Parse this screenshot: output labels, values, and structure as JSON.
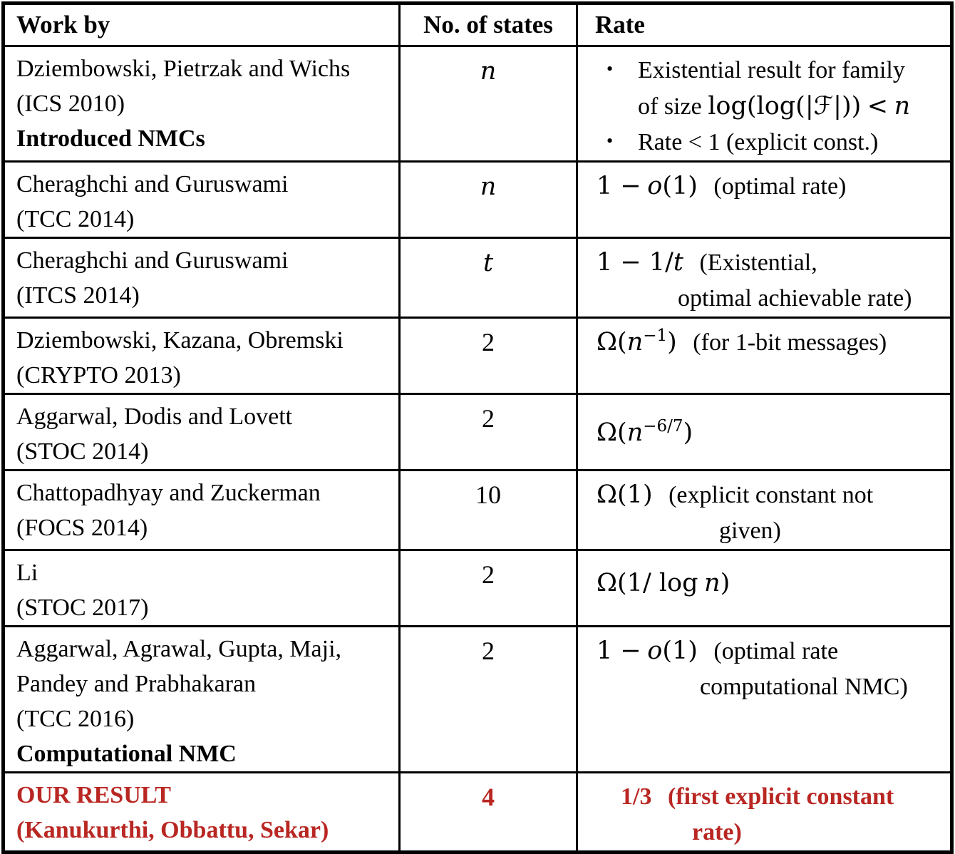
{
  "bullet": "•",
  "colors": {
    "accent_red": "#b92723",
    "border": "#000000",
    "background": "#ffffff"
  },
  "headers": {
    "work": "Work by",
    "states": "No. of states",
    "rate": "Rate"
  },
  "rows": [
    {
      "work_l1": "Dziembowski, Pietrzak and Wichs",
      "work_l2": "(ICS 2010)",
      "work_l3": "Introduced NMCs",
      "states": "n",
      "rate": {
        "b1_l1": "Existential result for family",
        "b1_l2_text": "of size",
        "b1_l2_math_a": "log(log(|",
        "b1_l2_cal": "ℱ",
        "b1_l2_math_b": "|))",
        "b1_l2_rel": "<",
        "b1_l2_var": "n",
        "b2": "Rate < 1 (explicit const.)"
      }
    },
    {
      "work_l1": "Cheraghchi and Guruswami",
      "work_l2": "(TCC 2014)",
      "states": "n",
      "rate": {
        "math_a": "1 −",
        "var": "o",
        "math_b": "(1)",
        "note": "(optimal rate)"
      }
    },
    {
      "work_l1": "Cheraghchi and Guruswami",
      "work_l2": "(ITCS 2014)",
      "states": "t",
      "rate": {
        "math_a": "1 − 1/",
        "var": "t",
        "note_l1": "(Existential,",
        "note_l2": "optimal achievable rate)"
      }
    },
    {
      "work_l1": "Dziembowski, Kazana, Obremski",
      "work_l2": "(CRYPTO 2013)",
      "states": "2",
      "rate": {
        "math_a": "Ω(",
        "var": "n",
        "sup": "−1",
        "math_b": ")",
        "note": "(for 1-bit messages)"
      }
    },
    {
      "work_l1": "Aggarwal, Dodis and Lovett",
      "work_l2": "(STOC 2014)",
      "states": "2",
      "rate": {
        "math_a": "Ω(",
        "var": "n",
        "sup": "−6/7",
        "math_b": ")"
      }
    },
    {
      "work_l1": "Chattopadhyay and Zuckerman",
      "work_l2": "(FOCS 2014)",
      "states": "10",
      "rate": {
        "math": "Ω(1)",
        "note_l1": "(explicit constant not",
        "note_l2": "given)"
      }
    },
    {
      "work_l1": "Li",
      "work_l2": "(STOC 2017)",
      "states": "2",
      "rate": {
        "math_a": "Ω(1/ log",
        "var": "n",
        "math_b": ")"
      }
    },
    {
      "work_l1": "Aggarwal, Agrawal, Gupta, Maji,",
      "work_l2": "Pandey and Prabhakaran",
      "work_l3": "(TCC 2016)",
      "work_l4": "Computational NMC",
      "states": "2",
      "rate": {
        "math_a": "1 −",
        "var": "o",
        "math_b": "(1)",
        "note_l1": "(optimal rate",
        "note_l2": "computational NMC)"
      }
    },
    {
      "work_l1": "OUR RESULT",
      "work_l2": "(Kanukurthi, Obbattu, Sekar)",
      "states": "4",
      "rate": {
        "value": "1/3",
        "note_l1": "(first explicit constant",
        "note_l2": "rate)"
      }
    }
  ]
}
